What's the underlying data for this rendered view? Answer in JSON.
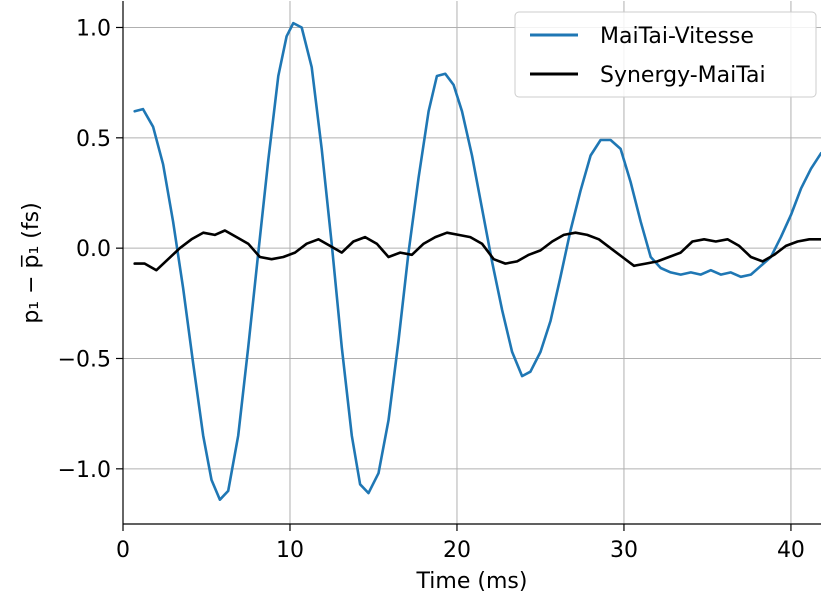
{
  "chart_data": {
    "type": "line",
    "xlabel": "Time (ms)",
    "ylabel": "p₁ − p̅₁ (fs)",
    "xlim": [
      0,
      41.8
    ],
    "ylim": [
      -1.25,
      1.12
    ],
    "x_ticks": [
      0,
      10,
      20,
      30,
      40
    ],
    "x_tick_labels": [
      "0",
      "10",
      "20",
      "30",
      "40"
    ],
    "y_ticks": [
      1.0,
      0.5,
      0.0,
      -0.5,
      -1.0
    ],
    "y_tick_labels": [
      "1.0",
      "0.5",
      "0.0",
      "−0.5",
      "−1.0"
    ],
    "grid": true,
    "legend_position": "top-right",
    "series": [
      {
        "name": "MaiTai-Vitesse",
        "color": "#1f77b4",
        "x": [
          0.7,
          1.2,
          1.8,
          2.4,
          3.0,
          3.6,
          4.2,
          4.8,
          5.3,
          5.8,
          6.3,
          6.9,
          7.5,
          8.1,
          8.7,
          9.3,
          9.8,
          10.2,
          10.7,
          11.3,
          11.9,
          12.5,
          13.1,
          13.7,
          14.2,
          14.7,
          15.3,
          15.9,
          16.5,
          17.1,
          17.7,
          18.3,
          18.8,
          19.3,
          19.8,
          20.3,
          20.9,
          21.5,
          22.1,
          22.7,
          23.3,
          23.9,
          24.4,
          25.0,
          25.6,
          26.2,
          26.8,
          27.4,
          28.0,
          28.6,
          29.2,
          29.8,
          30.4,
          31.0,
          31.6,
          32.2,
          32.8,
          33.4,
          34.0,
          34.6,
          35.2,
          35.8,
          36.4,
          37.0,
          37.6,
          38.2,
          38.8,
          39.4,
          40.0,
          40.6,
          41.2,
          41.8
        ],
        "y": [
          0.62,
          0.63,
          0.55,
          0.38,
          0.12,
          -0.18,
          -0.52,
          -0.85,
          -1.05,
          -1.14,
          -1.1,
          -0.85,
          -0.45,
          -0.02,
          0.4,
          0.78,
          0.96,
          1.02,
          1.0,
          0.82,
          0.45,
          0.02,
          -0.45,
          -0.85,
          -1.07,
          -1.11,
          -1.02,
          -0.78,
          -0.42,
          -0.02,
          0.32,
          0.62,
          0.78,
          0.79,
          0.74,
          0.62,
          0.42,
          0.18,
          -0.06,
          -0.28,
          -0.47,
          -0.58,
          -0.56,
          -0.47,
          -0.33,
          -0.13,
          0.08,
          0.26,
          0.42,
          0.49,
          0.49,
          0.45,
          0.3,
          0.12,
          -0.04,
          -0.09,
          -0.11,
          -0.12,
          -0.11,
          -0.12,
          -0.1,
          -0.12,
          -0.11,
          -0.13,
          -0.12,
          -0.08,
          -0.04,
          0.05,
          0.15,
          0.27,
          0.36,
          0.43
        ]
      },
      {
        "name": "Synergy-MaiTai",
        "color": "#000000",
        "x": [
          0.7,
          1.3,
          2.0,
          2.7,
          3.4,
          4.1,
          4.8,
          5.5,
          6.1,
          6.8,
          7.5,
          8.2,
          8.9,
          9.6,
          10.3,
          11.0,
          11.7,
          12.4,
          13.1,
          13.8,
          14.5,
          15.2,
          15.9,
          16.6,
          17.3,
          18.0,
          18.7,
          19.4,
          20.1,
          20.8,
          21.5,
          22.2,
          22.9,
          23.6,
          24.3,
          25.0,
          25.7,
          26.4,
          27.1,
          27.8,
          28.5,
          29.2,
          29.9,
          30.6,
          31.3,
          32.0,
          32.7,
          33.4,
          34.1,
          34.8,
          35.5,
          36.2,
          36.9,
          37.6,
          38.3,
          39.0,
          39.7,
          40.4,
          41.1,
          41.8
        ],
        "y": [
          -0.07,
          -0.07,
          -0.1,
          -0.05,
          0.0,
          0.04,
          0.07,
          0.06,
          0.08,
          0.05,
          0.02,
          -0.04,
          -0.05,
          -0.04,
          -0.02,
          0.02,
          0.04,
          0.01,
          -0.02,
          0.03,
          0.05,
          0.02,
          -0.04,
          -0.02,
          -0.03,
          0.02,
          0.05,
          0.07,
          0.06,
          0.05,
          0.02,
          -0.05,
          -0.07,
          -0.06,
          -0.03,
          -0.01,
          0.03,
          0.06,
          0.07,
          0.06,
          0.04,
          0.0,
          -0.04,
          -0.08,
          -0.07,
          -0.06,
          -0.04,
          -0.02,
          0.03,
          0.04,
          0.03,
          0.04,
          0.01,
          -0.04,
          -0.06,
          -0.03,
          0.01,
          0.03,
          0.04,
          0.04
        ]
      }
    ]
  }
}
